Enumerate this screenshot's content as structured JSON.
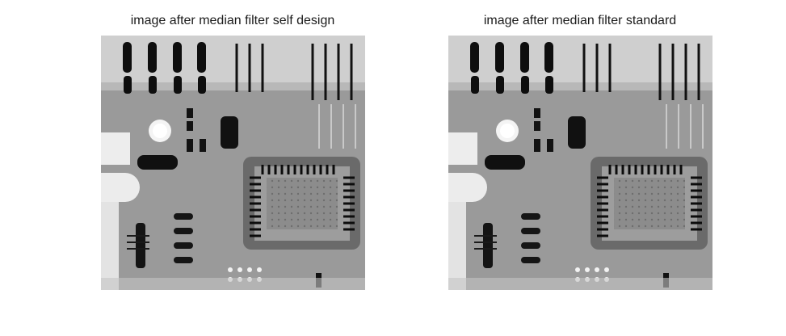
{
  "figure": {
    "panels": [
      {
        "title": "image after median filter self design"
      },
      {
        "title": "image after median filter standard"
      }
    ]
  },
  "colors": {
    "background": "#ffffff",
    "title_text": "#1a1a1a",
    "board_gray": "#9a9a9a",
    "dark": "#111111",
    "light": "#e6e6e6"
  }
}
